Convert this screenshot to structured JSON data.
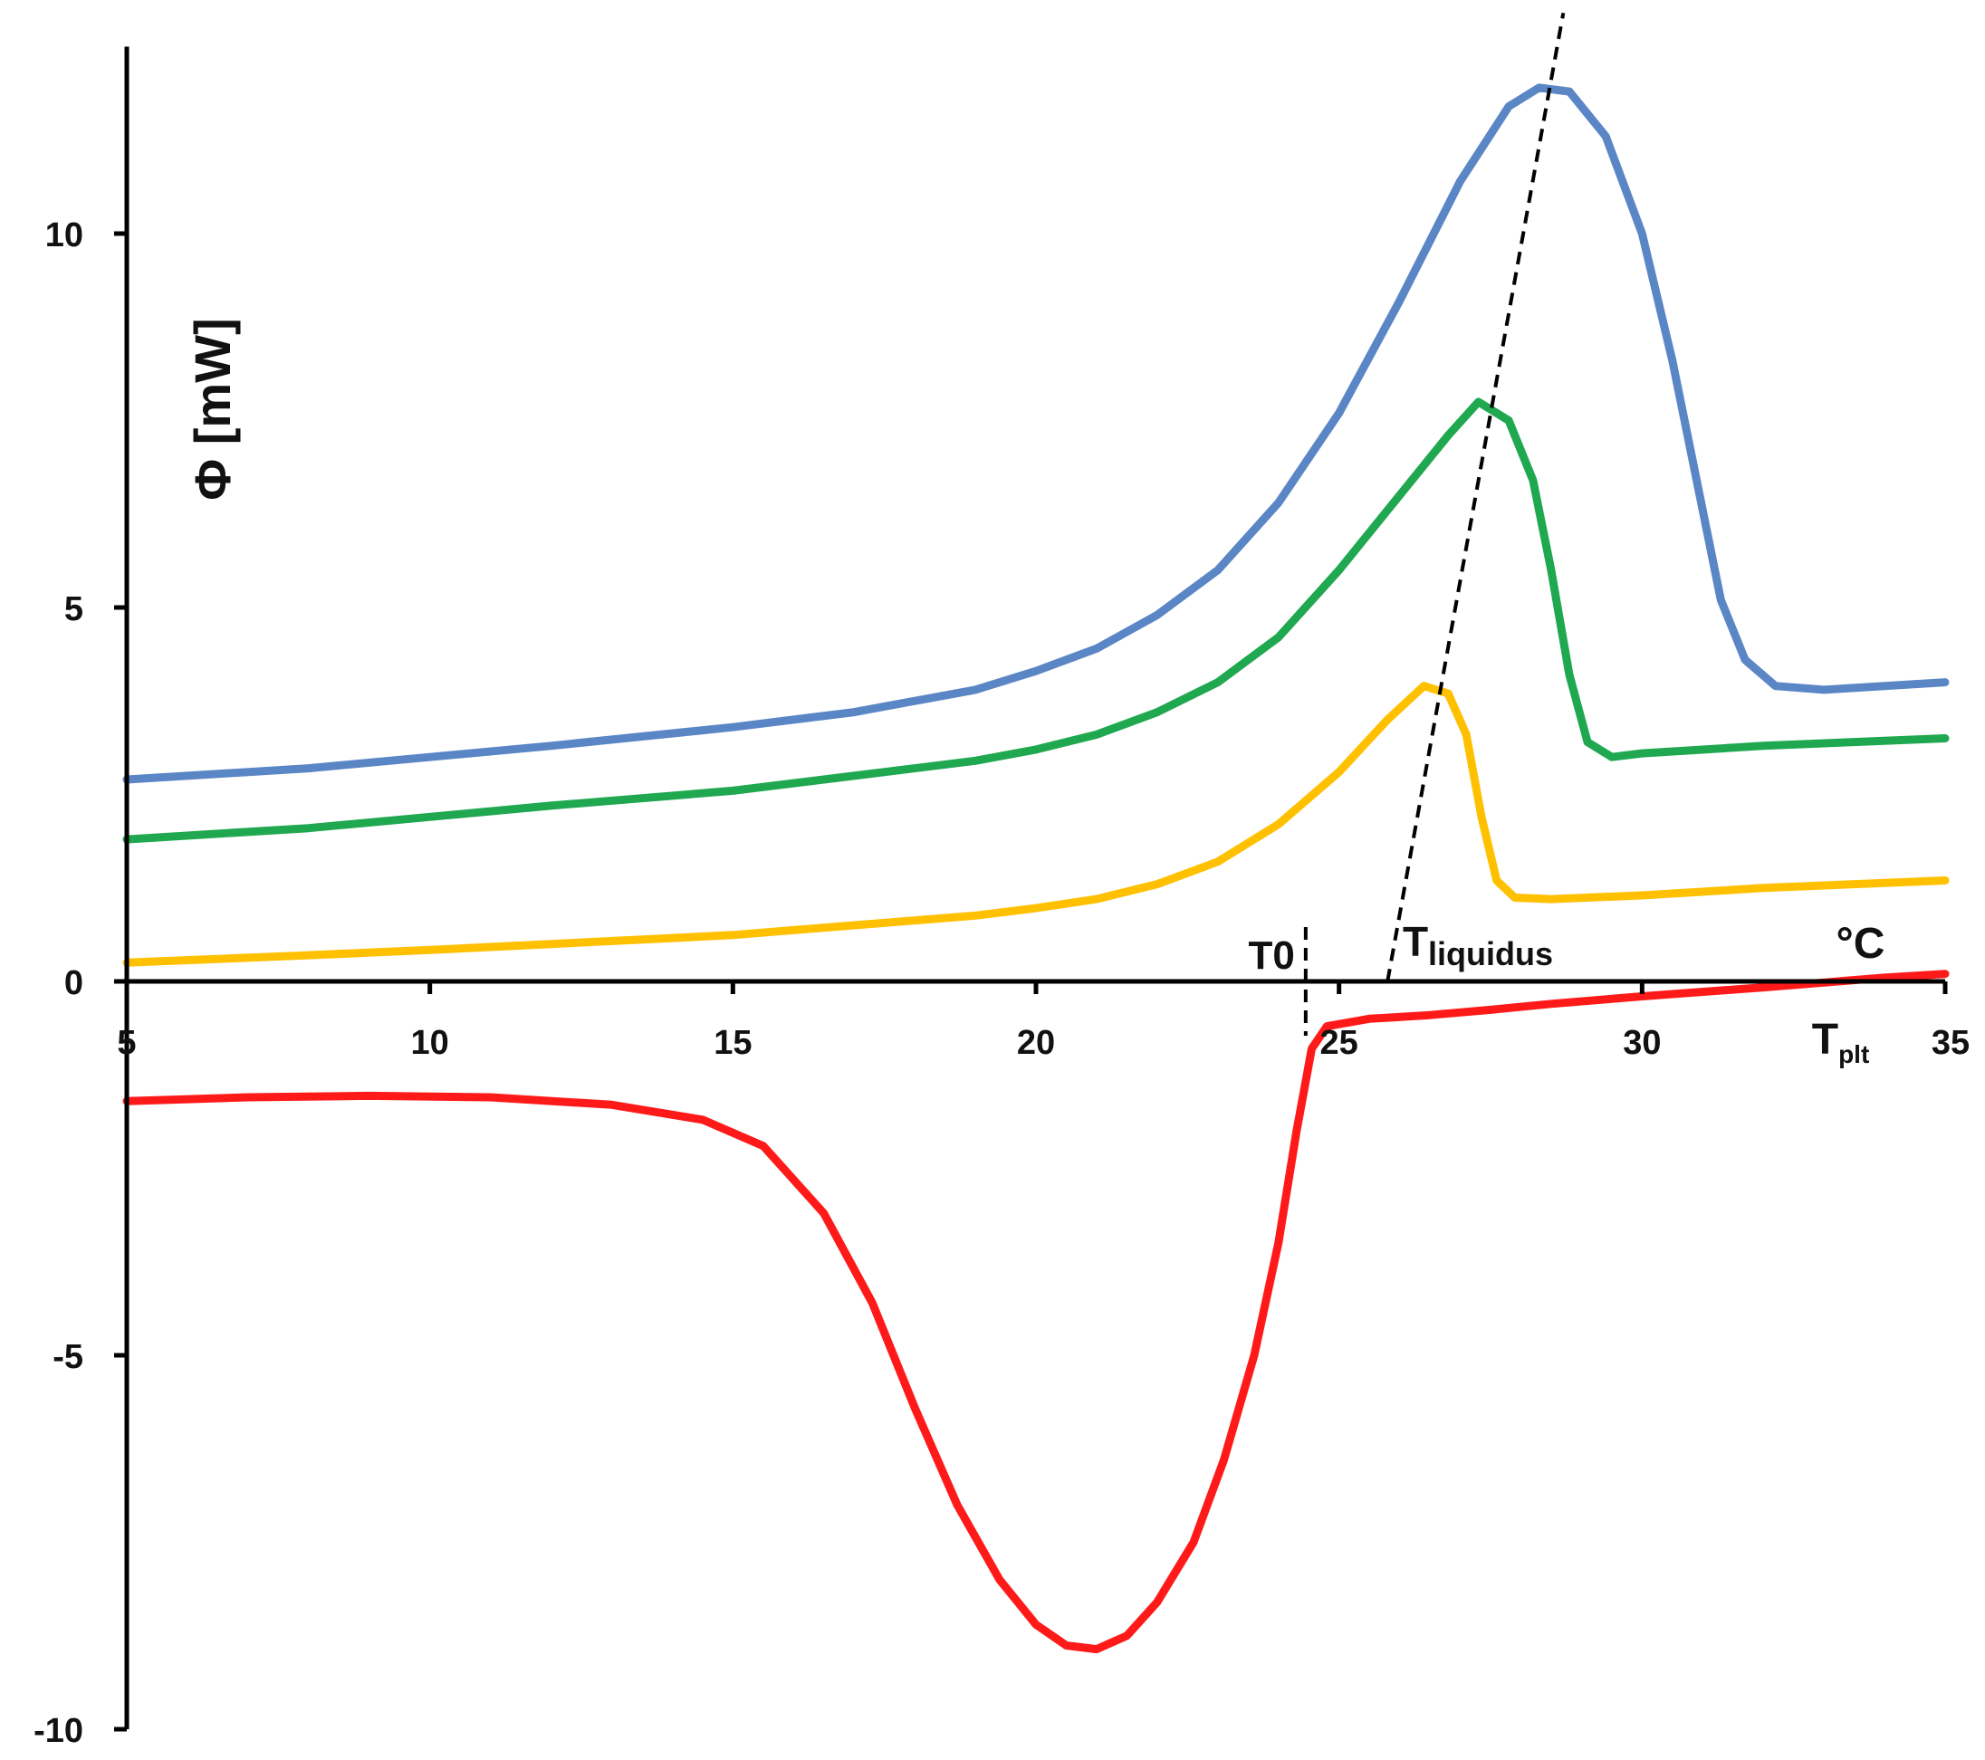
{
  "chart_data": {
    "type": "line",
    "title": "",
    "xlabel": "°C",
    "ylabel": "Φ [mW]",
    "xlim": [
      5,
      35
    ],
    "ylim": [
      -10,
      12.5
    ],
    "x_ticks": [
      5,
      10,
      15,
      20,
      25,
      30,
      35
    ],
    "y_ticks": [
      -10,
      -5,
      0,
      5,
      10
    ],
    "grid": false,
    "legend": "none",
    "series": [
      {
        "name": "blue",
        "color": "#5B86C6",
        "points": [
          [
            5,
            2.7
          ],
          [
            8,
            2.85
          ],
          [
            10,
            3.0
          ],
          [
            12,
            3.15
          ],
          [
            15,
            3.4
          ],
          [
            17,
            3.6
          ],
          [
            19,
            3.9
          ],
          [
            20,
            4.15
          ],
          [
            21,
            4.45
          ],
          [
            22,
            4.9
          ],
          [
            23,
            5.5
          ],
          [
            24,
            6.4
          ],
          [
            25,
            7.6
          ],
          [
            26,
            9.1
          ],
          [
            27,
            10.7
          ],
          [
            27.8,
            11.7
          ],
          [
            28.3,
            11.95
          ],
          [
            28.8,
            11.9
          ],
          [
            29.4,
            11.3
          ],
          [
            30,
            10.0
          ],
          [
            30.5,
            8.3
          ],
          [
            30.9,
            6.7
          ],
          [
            31.3,
            5.1
          ],
          [
            31.7,
            4.3
          ],
          [
            32.2,
            3.95
          ],
          [
            33,
            3.9
          ],
          [
            34,
            3.95
          ],
          [
            35,
            4.0
          ]
        ]
      },
      {
        "name": "green",
        "color": "#1FA84F",
        "points": [
          [
            5,
            1.9
          ],
          [
            8,
            2.05
          ],
          [
            10,
            2.2
          ],
          [
            12,
            2.35
          ],
          [
            15,
            2.55
          ],
          [
            17,
            2.75
          ],
          [
            19,
            2.95
          ],
          [
            20,
            3.1
          ],
          [
            21,
            3.3
          ],
          [
            22,
            3.6
          ],
          [
            23,
            4.0
          ],
          [
            24,
            4.6
          ],
          [
            25,
            5.5
          ],
          [
            26,
            6.5
          ],
          [
            26.8,
            7.3
          ],
          [
            27.3,
            7.75
          ],
          [
            27.8,
            7.5
          ],
          [
            28.2,
            6.7
          ],
          [
            28.5,
            5.5
          ],
          [
            28.8,
            4.1
          ],
          [
            29.1,
            3.2
          ],
          [
            29.5,
            3.0
          ],
          [
            30,
            3.05
          ],
          [
            32,
            3.15
          ],
          [
            35,
            3.25
          ]
        ]
      },
      {
        "name": "yellow",
        "color": "#FFC000",
        "points": [
          [
            5,
            0.25
          ],
          [
            8,
            0.35
          ],
          [
            10,
            0.42
          ],
          [
            12,
            0.5
          ],
          [
            15,
            0.62
          ],
          [
            17,
            0.75
          ],
          [
            19,
            0.88
          ],
          [
            20,
            0.98
          ],
          [
            21,
            1.1
          ],
          [
            22,
            1.3
          ],
          [
            23,
            1.6
          ],
          [
            24,
            2.1
          ],
          [
            25,
            2.8
          ],
          [
            25.8,
            3.5
          ],
          [
            26.4,
            3.95
          ],
          [
            26.8,
            3.85
          ],
          [
            27.1,
            3.3
          ],
          [
            27.35,
            2.2
          ],
          [
            27.6,
            1.35
          ],
          [
            27.9,
            1.12
          ],
          [
            28.5,
            1.1
          ],
          [
            30,
            1.15
          ],
          [
            32,
            1.25
          ],
          [
            35,
            1.35
          ]
        ]
      },
      {
        "name": "red",
        "color": "#FF1A1A",
        "points": [
          [
            5,
            -1.6
          ],
          [
            7,
            -1.55
          ],
          [
            9,
            -1.53
          ],
          [
            11,
            -1.55
          ],
          [
            13,
            -1.65
          ],
          [
            14.5,
            -1.85
          ],
          [
            15.5,
            -2.2
          ],
          [
            16.5,
            -3.1
          ],
          [
            17.3,
            -4.3
          ],
          [
            18,
            -5.7
          ],
          [
            18.7,
            -7.0
          ],
          [
            19.4,
            -8.0
          ],
          [
            20,
            -8.6
          ],
          [
            20.5,
            -8.88
          ],
          [
            21,
            -8.93
          ],
          [
            21.5,
            -8.75
          ],
          [
            22,
            -8.3
          ],
          [
            22.6,
            -7.5
          ],
          [
            23.1,
            -6.4
          ],
          [
            23.6,
            -5.0
          ],
          [
            24,
            -3.5
          ],
          [
            24.3,
            -2.0
          ],
          [
            24.55,
            -0.9
          ],
          [
            24.8,
            -0.6
          ],
          [
            25.5,
            -0.5
          ],
          [
            26.5,
            -0.45
          ],
          [
            27.5,
            -0.38
          ],
          [
            28.5,
            -0.3
          ],
          [
            30,
            -0.2
          ],
          [
            32,
            -0.08
          ],
          [
            34,
            0.05
          ],
          [
            35,
            0.1
          ]
        ]
      }
    ],
    "annotations": {
      "t0_label": "T0",
      "t0_x": 24.45,
      "tliquidus_label_main": "T",
      "tliquidus_label_sub": "liquidus",
      "tplt_label_main": "T",
      "tplt_label_sub": "plt",
      "unit_label": "°C",
      "liquidus_line": [
        [
          25.8,
          0
        ],
        [
          28.7,
          12.95
        ]
      ]
    }
  }
}
